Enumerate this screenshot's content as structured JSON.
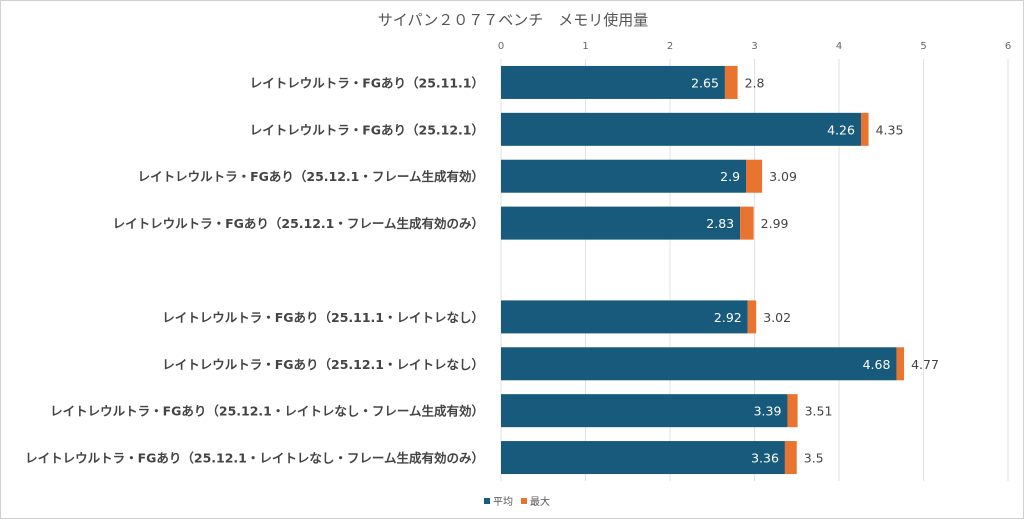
{
  "chart_data": {
    "type": "bar",
    "orientation": "horizontal",
    "title": "サイパン２０７７ベンチ　メモリ使用量",
    "xlim": [
      0,
      6
    ],
    "xticks": [
      "0",
      "1",
      "2",
      "3",
      "4",
      "5",
      "6"
    ],
    "grid": true,
    "legend_position": "bottom",
    "categories": [
      "レイトレウルトラ・FGあり（25.11.1）",
      "レイトレウルトラ・FGあり（25.12.1）",
      "レイトレウルトラ・FGあり（25.12.1・フレーム生成有効）",
      "レイトレウルトラ・FGあり（25.12.1・フレーム生成有効のみ）",
      "",
      "レイトレウルトラ・FGあり（25.11.1・レイトレなし）",
      "レイトレウルトラ・FGあり（25.12.1・レイトレなし）",
      "レイトレウルトラ・FGあり（25.12.1・レイトレなし・フレーム生成有効）",
      "レイトレウルトラ・FGあり（25.12.1・レイトレなし・フレーム生成有効のみ）"
    ],
    "series": [
      {
        "name": "平均",
        "color": "#175a7c",
        "values": [
          2.65,
          4.26,
          2.9,
          2.83,
          null,
          2.92,
          4.68,
          3.39,
          3.36
        ]
      },
      {
        "name": "最大",
        "color": "#e8742f",
        "values": [
          2.8,
          4.35,
          3.09,
          2.99,
          null,
          3.02,
          4.77,
          3.51,
          3.5
        ]
      }
    ]
  }
}
